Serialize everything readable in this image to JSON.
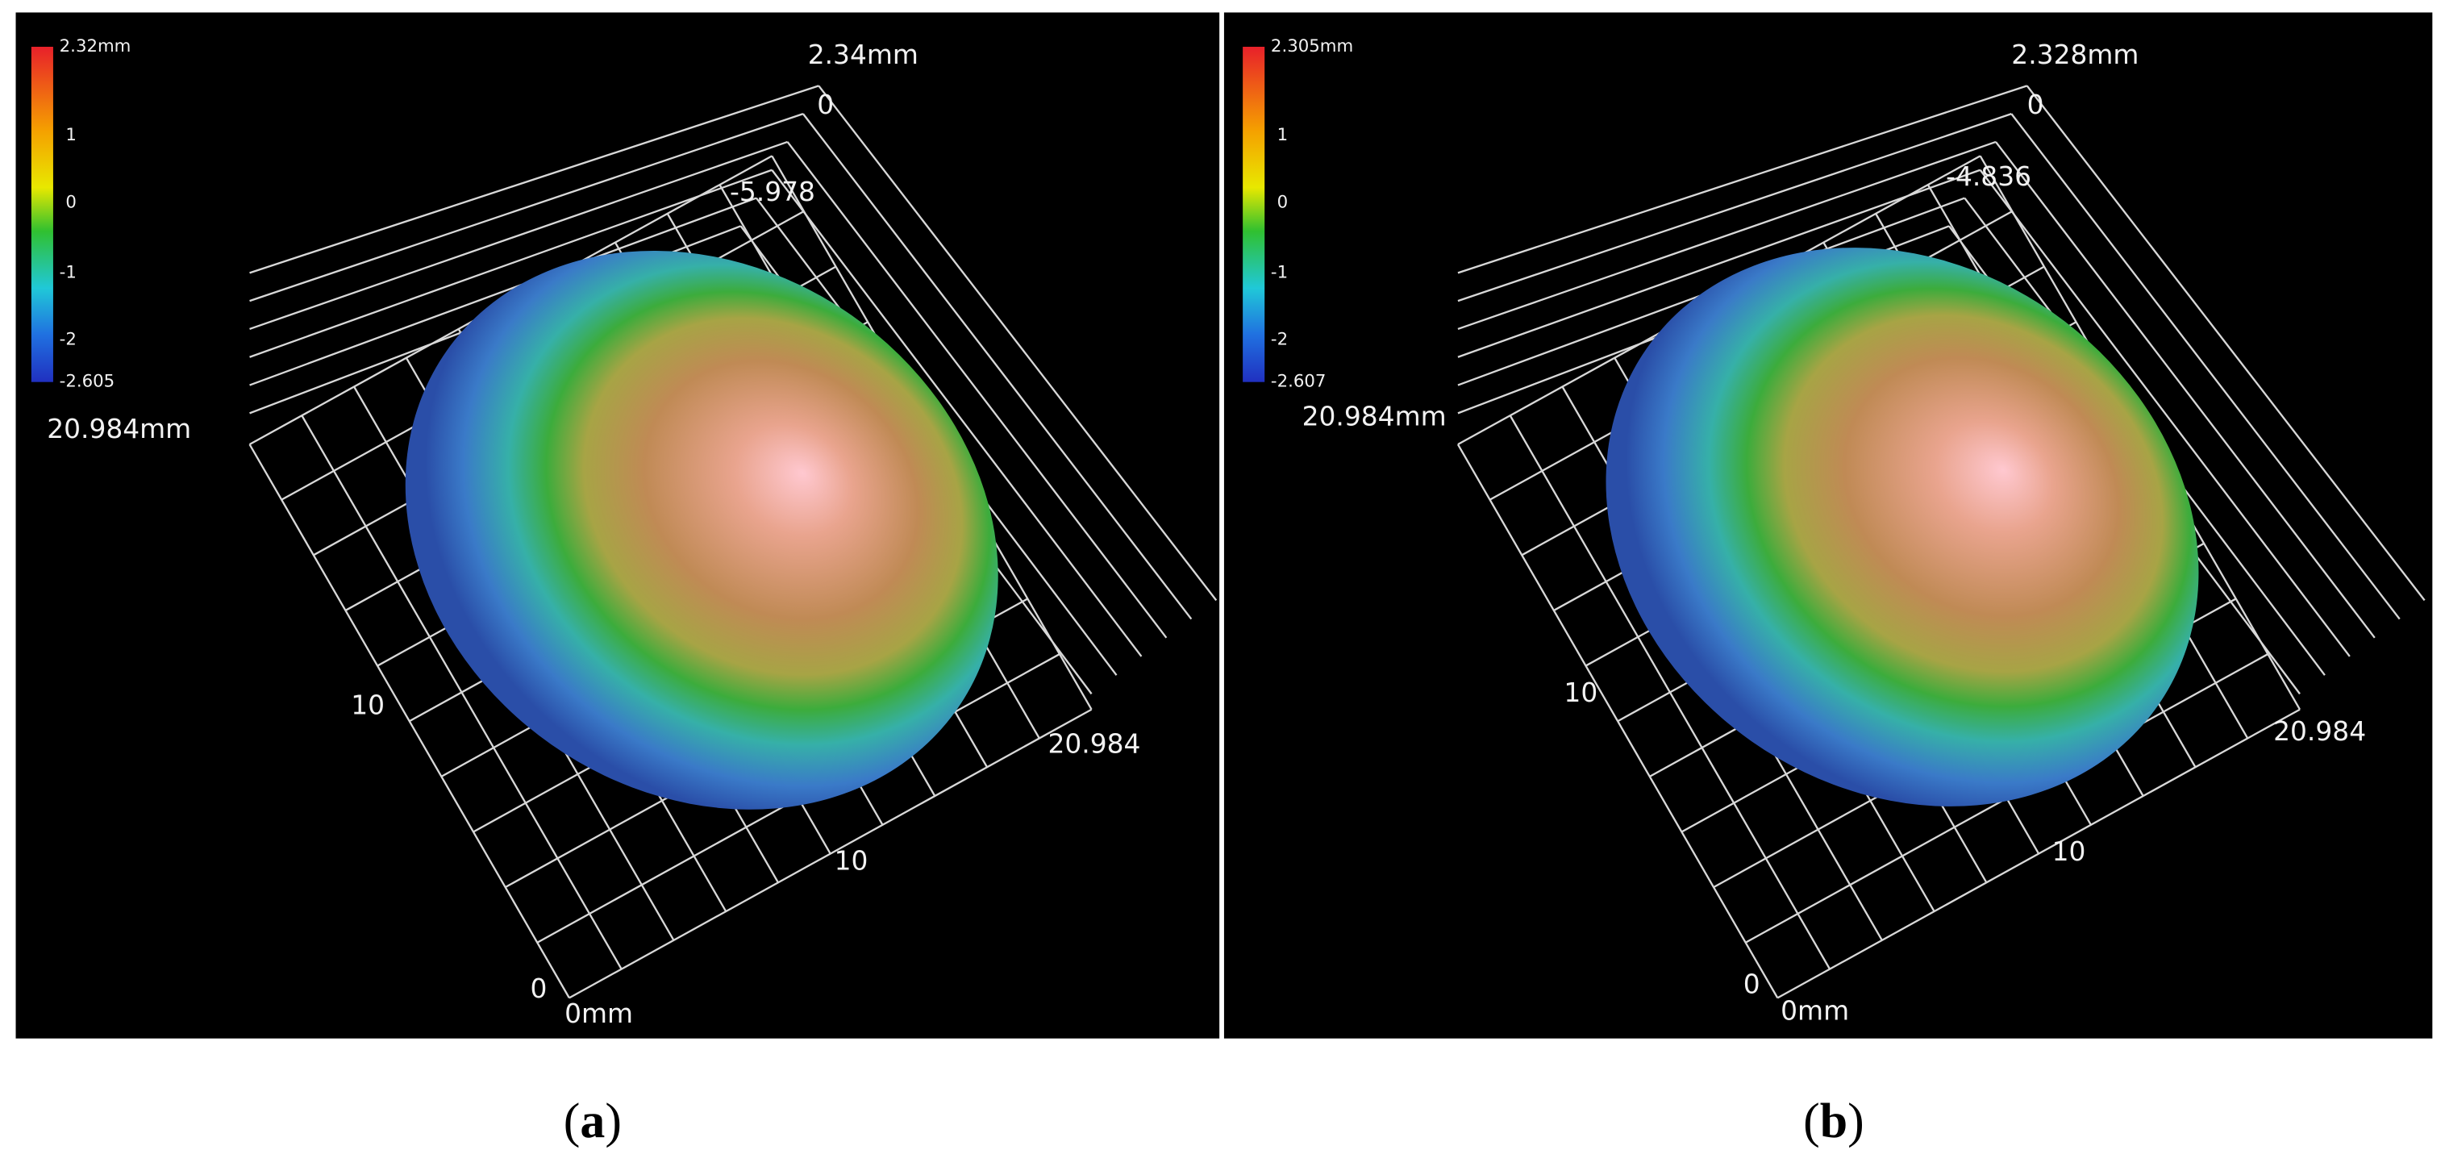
{
  "panels": [
    {
      "caption": [
        "(",
        "a",
        ")"
      ],
      "colorbar": {
        "max": "2.32mm",
        "ticks": [
          "1",
          "0",
          "-1",
          "-2"
        ],
        "min": "-2.605"
      },
      "axes": {
        "z_max": "2.34mm",
        "z_zero": "0",
        "z_min": "-5.978",
        "y_max": "20.984mm",
        "y_mid": "10",
        "y_zero": "0",
        "x_max": "20.984",
        "x_mid": "10",
        "x_zero": "0mm"
      }
    },
    {
      "caption": [
        "(",
        "b",
        ")"
      ],
      "colorbar": {
        "max": "2.305mm",
        "ticks": [
          "1",
          "0",
          "-1",
          "-2"
        ],
        "min": "-2.607"
      },
      "axes": {
        "z_max": "2.328mm",
        "z_zero": "0",
        "z_min": "-4.836",
        "y_max": "20.984mm",
        "y_mid": "10",
        "y_zero": "0",
        "x_max": "20.984",
        "x_mid": "10",
        "x_zero": "0mm"
      }
    }
  ]
}
